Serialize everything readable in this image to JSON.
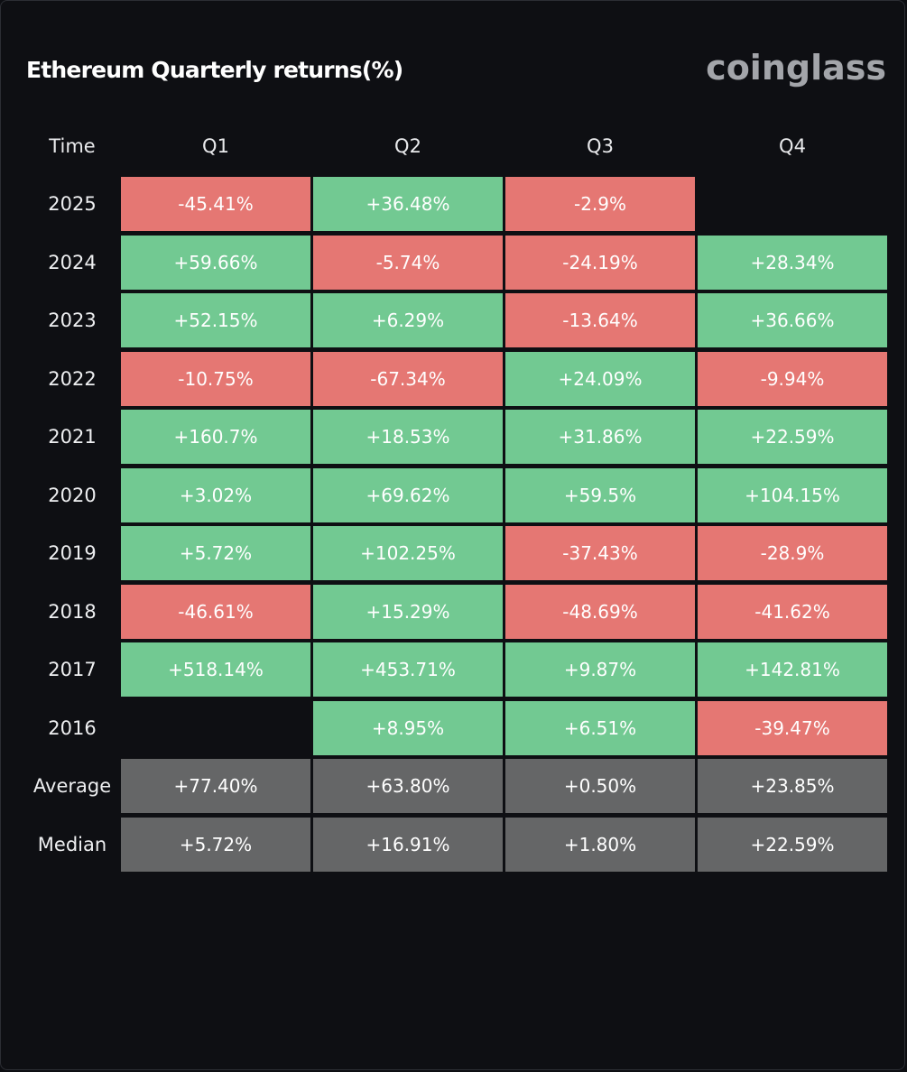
{
  "title": "Ethereum Quarterly returns(%)",
  "brand": "coinglass",
  "colors": {
    "positive": "#72c992",
    "negative": "#e57773",
    "stat": "#656667",
    "background": "#0e0f13"
  },
  "chart_data": {
    "type": "table",
    "title": "Ethereum Quarterly returns(%)",
    "columns": [
      "Time",
      "Q1",
      "Q2",
      "Q3",
      "Q4"
    ],
    "rows": [
      {
        "label": "2025",
        "values": [
          "-45.41%",
          "+36.48%",
          "-2.9%",
          ""
        ]
      },
      {
        "label": "2024",
        "values": [
          "+59.66%",
          "-5.74%",
          "-24.19%",
          "+28.34%"
        ]
      },
      {
        "label": "2023",
        "values": [
          "+52.15%",
          "+6.29%",
          "-13.64%",
          "+36.66%"
        ]
      },
      {
        "label": "2022",
        "values": [
          "-10.75%",
          "-67.34%",
          "+24.09%",
          "-9.94%"
        ]
      },
      {
        "label": "2021",
        "values": [
          "+160.7%",
          "+18.53%",
          "+31.86%",
          "+22.59%"
        ]
      },
      {
        "label": "2020",
        "values": [
          "+3.02%",
          "+69.62%",
          "+59.5%",
          "+104.15%"
        ]
      },
      {
        "label": "2019",
        "values": [
          "+5.72%",
          "+102.25%",
          "-37.43%",
          "-28.9%"
        ]
      },
      {
        "label": "2018",
        "values": [
          "-46.61%",
          "+15.29%",
          "-48.69%",
          "-41.62%"
        ]
      },
      {
        "label": "2017",
        "values": [
          "+518.14%",
          "+453.71%",
          "+9.87%",
          "+142.81%"
        ]
      },
      {
        "label": "2016",
        "values": [
          "",
          "+8.95%",
          "+6.51%",
          "-39.47%"
        ]
      }
    ],
    "summary": [
      {
        "label": "Average",
        "values": [
          "+77.40%",
          "+63.80%",
          "+0.50%",
          "+23.85%"
        ]
      },
      {
        "label": "Median",
        "values": [
          "+5.72%",
          "+16.91%",
          "+1.80%",
          "+22.59%"
        ]
      }
    ]
  }
}
